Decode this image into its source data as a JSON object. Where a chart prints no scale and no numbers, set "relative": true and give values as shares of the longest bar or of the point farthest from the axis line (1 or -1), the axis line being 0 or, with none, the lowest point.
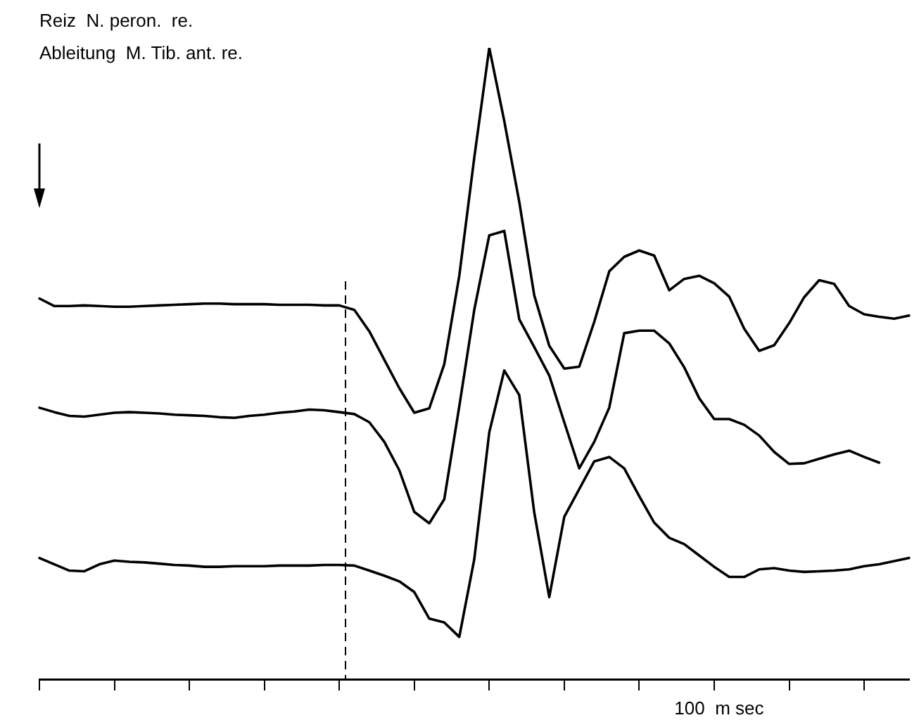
{
  "chart_data": {
    "type": "line",
    "relative": true,
    "title": "Reiz  N. peron.  re.",
    "subtitle": "Ableitung  M. Tib. ant. re.",
    "xlabel": "100  m sec",
    "categories": [
      null,
      null,
      null,
      null,
      null,
      null,
      null,
      null,
      null,
      null,
      null,
      null,
      null,
      null,
      null,
      null,
      null,
      null,
      null,
      null,
      null,
      null,
      null,
      null,
      null,
      null,
      null,
      null,
      null,
      null,
      null,
      null,
      null,
      null,
      null,
      null,
      null,
      null,
      null,
      null,
      null,
      null,
      null,
      null,
      null,
      null,
      null,
      null,
      null,
      null,
      null,
      null,
      null,
      null,
      null,
      null,
      null,
      null,
      null
    ],
    "marker": "none",
    "line_style": "solid",
    "grid": false,
    "legend": false,
    "series": [
      {
        "color": "#000000",
        "values": [
          0.603,
          0.591,
          0.591,
          0.592,
          0.591,
          0.59,
          0.59,
          0.591,
          0.592,
          0.593,
          0.594,
          0.595,
          0.595,
          0.594,
          0.594,
          0.594,
          0.593,
          0.593,
          0.593,
          0.592,
          0.592,
          0.585,
          0.551,
          0.506,
          0.461,
          0.422,
          0.429,
          0.499,
          0.639,
          0.826,
          1,
          0.884,
          0.756,
          0.608,
          0.528,
          0.492,
          0.495,
          0.566,
          0.646,
          0.669,
          0.679,
          0.671,
          0.616,
          0.634,
          0.639,
          0.627,
          0.606,
          0.555,
          0.52,
          0.529,
          0.564,
          0.605,
          0.632,
          0.626,
          0.591,
          0.578,
          0.574,
          0.571,
          0.576
        ]
      },
      {
        "color": "#000000",
        "values": [
          0.43,
          0.423,
          0.417,
          0.416,
          0.419,
          0.422,
          0.423,
          0.422,
          0.421,
          0.419,
          0.418,
          0.417,
          0.415,
          0.414,
          0.417,
          0.419,
          0.422,
          0.424,
          0.427,
          0.426,
          0.423,
          0.42,
          0.407,
          0.376,
          0.331,
          0.265,
          0.247,
          0.285,
          0.432,
          0.585,
          0.703,
          0.71,
          0.57,
          0.526,
          0.481,
          0.407,
          0.334,
          0.376,
          0.43,
          0.548,
          0.552,
          0.552,
          0.532,
          0.494,
          0.445,
          0.412,
          0.412,
          0.403,
          0.386,
          0.36,
          0.341,
          0.342,
          0.349,
          0.356,
          0.362,
          0.352,
          0.343,
          null,
          null
        ]
      },
      {
        "color": "#000000",
        "values": [
          0.192,
          0.182,
          0.172,
          0.171,
          0.182,
          0.188,
          0.186,
          0.185,
          0.183,
          0.181,
          0.18,
          0.178,
          0.178,
          0.179,
          0.179,
          0.179,
          0.18,
          0.18,
          0.18,
          0.181,
          0.181,
          0.18,
          0.172,
          0.164,
          0.155,
          0.138,
          0.096,
          0.09,
          0.067,
          0.19,
          0.391,
          0.489,
          0.45,
          0.264,
          0.13,
          0.257,
          0.301,
          0.345,
          0.352,
          0.334,
          0.29,
          0.248,
          0.224,
          0.214,
          0.196,
          0.178,
          0.162,
          0.162,
          0.174,
          0.176,
          0.172,
          0.17,
          0.171,
          0.172,
          0.174,
          0.179,
          0.182,
          0.187,
          0.192
        ]
      }
    ]
  }
}
